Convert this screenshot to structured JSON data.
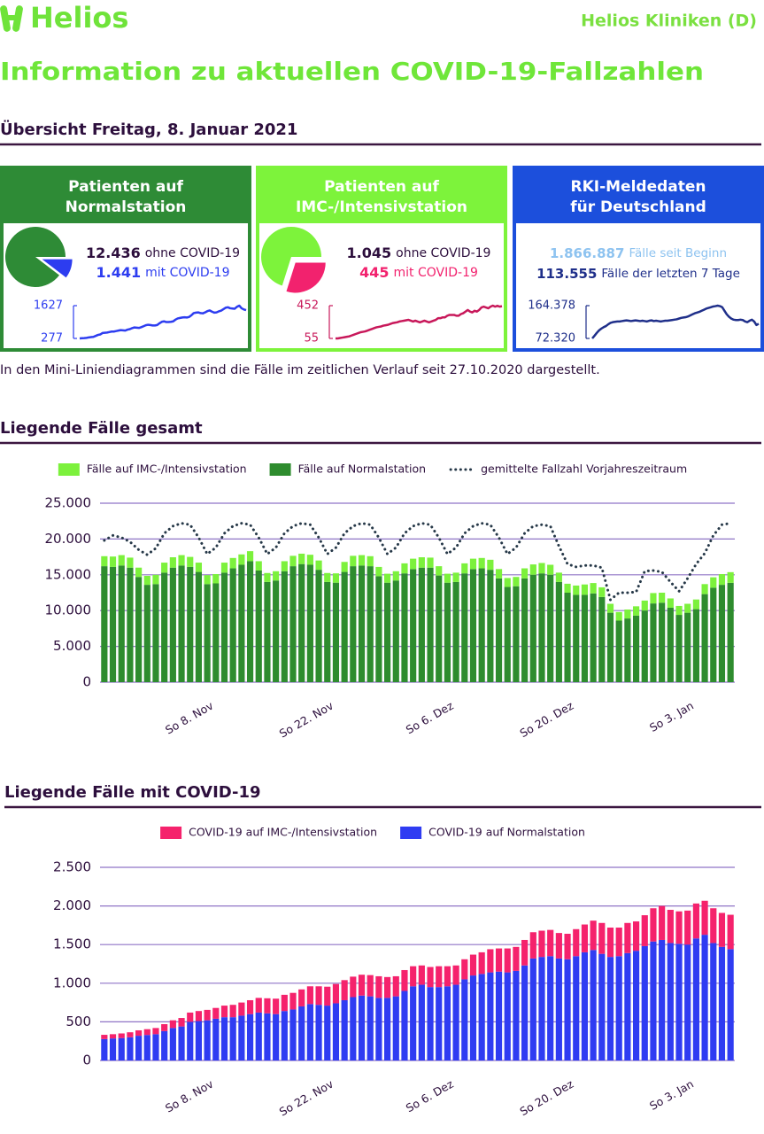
{
  "header": {
    "brand": "Helios",
    "region": "Helios Kliniken (D)",
    "title": "Information zu aktuellen COVID-19-Fallzahlen",
    "subtitle": "Übersicht Freitag, 8. Januar 2021"
  },
  "cards": [
    {
      "title_lines": [
        "Patienten auf",
        "Normalstation"
      ],
      "color": "#2e8b36",
      "pie": {
        "values": [
          12436,
          1441
        ],
        "value_labels": [
          "12.436",
          "1.441"
        ],
        "labels": [
          "ohne COVID-19",
          "mit COVID-19"
        ],
        "colors": [
          "#2e8b36",
          "#2d3df0"
        ]
      },
      "sparkline": {
        "ylim": [
          277,
          1627
        ],
        "yticks": [
          277,
          1627
        ],
        "color": "#2d3df0"
      }
    },
    {
      "title_lines": [
        "Patienten auf",
        "IMC-/Intensivstation"
      ],
      "color": "#7df33b",
      "pie": {
        "values": [
          1045,
          445
        ],
        "value_labels": [
          "1.045",
          "445"
        ],
        "labels": [
          "ohne COVID-19",
          "mit COVID-19"
        ],
        "colors": [
          "#7df33b",
          "#f2226e"
        ]
      },
      "sparkline": {
        "ylim": [
          55,
          452
        ],
        "yticks": [
          55,
          452
        ],
        "color": "#c8185a"
      }
    },
    {
      "title_lines": [
        "RKI-Meldedaten",
        "für Deutschland"
      ],
      "color": "#1c4fdc",
      "stats": [
        {
          "value": "1.866.887",
          "label": "Fälle seit Beginn",
          "color": "#8ec3f0"
        },
        {
          "value": "113.555",
          "label": "Fälle der letzten 7 Tage",
          "color": "#1f2f8a"
        }
      ],
      "sparkline": {
        "ylim": [
          72320,
          164378
        ],
        "yticks": [
          {
            "value": 72320,
            "label": "72.320"
          },
          {
            "value": 164378,
            "label": "164.378"
          }
        ],
        "color": "#1f2f8a",
        "values": [
          72320,
          80000,
          88000,
          95000,
          100000,
          104000,
          107000,
          112000,
          116000,
          118000,
          119000,
          120000,
          120000,
          121000,
          122000,
          123000,
          122000,
          121000,
          122000,
          123000,
          122000,
          121000,
          122000,
          121000,
          120000,
          122000,
          123000,
          121000,
          122000,
          121000,
          120000,
          121000,
          122000,
          122000,
          123000,
          124000,
          125000,
          126000,
          128000,
          130000,
          131000,
          132000,
          134000,
          137000,
          140000,
          143000,
          145000,
          147000,
          150000,
          153000,
          156000,
          158000,
          160000,
          162000,
          163000,
          164378,
          163000,
          160000,
          150000,
          140000,
          133000,
          128000,
          125000,
          124000,
          124000,
          125000,
          124000,
          120000,
          118000,
          122000,
          125000,
          120000,
          110000,
          113555
        ]
      }
    }
  ],
  "note": "In den Mini-Liniendiagrammen sind die Fälle im zeitlichen Verlauf seit 27.10.2020 dargestellt.",
  "chart_data": [
    {
      "type": "bar",
      "title": "Liegende Fälle gesamt",
      "stacked": true,
      "grid": true,
      "categories": [
        null,
        null,
        null,
        null,
        null,
        null,
        null,
        null,
        null,
        null,
        null,
        null,
        "So 8. Nov",
        null,
        null,
        null,
        null,
        null,
        null,
        null,
        null,
        null,
        null,
        null,
        null,
        null,
        "So 22. Nov",
        null,
        null,
        null,
        null,
        null,
        null,
        null,
        null,
        null,
        null,
        null,
        null,
        null,
        "So 6. Dez",
        null,
        null,
        null,
        null,
        null,
        null,
        null,
        null,
        null,
        null,
        null,
        null,
        null,
        "So 20. Dez",
        null,
        null,
        null,
        null,
        null,
        null,
        null,
        null,
        null,
        null,
        null,
        null,
        null,
        "So 3. Jan",
        null,
        null,
        null,
        null,
        null
      ],
      "ylim": [
        0,
        25000
      ],
      "yticks": [
        0,
        {
          "value": 5000,
          "label": "5.000"
        },
        {
          "value": 10000,
          "label": "10.000"
        },
        {
          "value": 15000,
          "label": "15.000"
        },
        {
          "value": 20000,
          "label": "20.000"
        },
        {
          "value": 25000,
          "label": "25.000"
        }
      ],
      "series": [
        {
          "name": "Fälle auf Normalstation",
          "color": "#2e8c2e",
          "values": [
            16200,
            16100,
            16300,
            16000,
            14700,
            13600,
            13700,
            15300,
            16000,
            16300,
            16100,
            15400,
            13700,
            13800,
            15300,
            15900,
            16400,
            16900,
            15600,
            14000,
            14200,
            15500,
            16200,
            16500,
            16400,
            15700,
            14000,
            13900,
            15400,
            16200,
            16300,
            16200,
            14800,
            13900,
            14200,
            15200,
            15800,
            16000,
            16000,
            14900,
            13900,
            14000,
            15200,
            15800,
            15900,
            15700,
            14500,
            13300,
            13400,
            14500,
            15000,
            15200,
            15000,
            14000,
            12500,
            12200,
            12200,
            12400,
            11900,
            9700,
            8600,
            8900,
            9300,
            10000,
            11000,
            11100,
            10400,
            9400,
            9700,
            10200,
            12300,
            13200,
            13600,
            13877
          ]
        },
        {
          "name": "Fälle auf IMC-/Intensivstation",
          "color": "#7cf13c",
          "values": [
            1400,
            1450,
            1450,
            1400,
            1300,
            1250,
            1300,
            1400,
            1450,
            1450,
            1400,
            1300,
            1250,
            1300,
            1400,
            1450,
            1450,
            1400,
            1300,
            1250,
            1300,
            1400,
            1450,
            1450,
            1400,
            1300,
            1250,
            1300,
            1400,
            1450,
            1450,
            1400,
            1300,
            1250,
            1300,
            1400,
            1450,
            1450,
            1400,
            1300,
            1250,
            1300,
            1400,
            1450,
            1450,
            1400,
            1300,
            1250,
            1300,
            1400,
            1450,
            1450,
            1400,
            1300,
            1250,
            1300,
            1450,
            1450,
            1350,
            1250,
            1200,
            1250,
            1300,
            1400,
            1450,
            1400,
            1300,
            1250,
            1250,
            1350,
            1400,
            1450,
            1500,
            1490
          ]
        },
        {
          "name": "gemittelte Fallzahl Vorjahreszeitraum",
          "type": "line",
          "style": "dotted",
          "color": "#263848",
          "values": [
            19800,
            20500,
            20200,
            19600,
            18500,
            17800,
            18700,
            20800,
            21800,
            22200,
            22000,
            20200,
            17900,
            18800,
            20800,
            21800,
            22200,
            22000,
            20200,
            17900,
            18800,
            20800,
            21800,
            22200,
            22000,
            20200,
            17900,
            18800,
            20800,
            21800,
            22200,
            22000,
            20200,
            17900,
            18800,
            20800,
            21800,
            22200,
            22000,
            20200,
            17900,
            18800,
            20800,
            21800,
            22200,
            22000,
            20200,
            17900,
            18800,
            20800,
            21800,
            22000,
            21800,
            19000,
            16500,
            16100,
            16300,
            16300,
            16000,
            11500,
            12500,
            12500,
            12600,
            15500,
            15600,
            15400,
            14000,
            12700,
            14500,
            16500,
            18000,
            20500,
            22000,
            22200
          ]
        }
      ]
    },
    {
      "type": "bar",
      "title": "Liegende Fälle mit COVID-19",
      "stacked": true,
      "grid": true,
      "categories": [
        null,
        null,
        null,
        null,
        null,
        null,
        null,
        null,
        null,
        null,
        null,
        null,
        "So 8. Nov",
        null,
        null,
        null,
        null,
        null,
        null,
        null,
        null,
        null,
        null,
        null,
        null,
        null,
        "So 22. Nov",
        null,
        null,
        null,
        null,
        null,
        null,
        null,
        null,
        null,
        null,
        null,
        null,
        null,
        "So 6. Dez",
        null,
        null,
        null,
        null,
        null,
        null,
        null,
        null,
        null,
        null,
        null,
        null,
        null,
        "So 20. Dez",
        null,
        null,
        null,
        null,
        null,
        null,
        null,
        null,
        null,
        null,
        null,
        null,
        null,
        "So 3. Jan",
        null,
        null,
        null,
        null,
        null
      ],
      "ylim": [
        0,
        2500
      ],
      "yticks": [
        0,
        500,
        {
          "value": 1000,
          "label": "1.000"
        },
        {
          "value": 1500,
          "label": "1.500"
        },
        {
          "value": 2000,
          "label": "2.000"
        },
        {
          "value": 2500,
          "label": "2.500"
        }
      ],
      "series": [
        {
          "name": "COVID-19 auf Normalstation",
          "color": "#2f3cf2",
          "values": [
            277,
            285,
            290,
            300,
            320,
            330,
            340,
            380,
            420,
            440,
            500,
            510,
            520,
            540,
            560,
            560,
            580,
            600,
            620,
            610,
            600,
            640,
            660,
            700,
            730,
            720,
            710,
            740,
            780,
            820,
            840,
            830,
            810,
            810,
            830,
            900,
            960,
            980,
            950,
            950,
            960,
            980,
            1050,
            1100,
            1120,
            1140,
            1150,
            1140,
            1160,
            1230,
            1320,
            1340,
            1350,
            1320,
            1310,
            1350,
            1400,
            1430,
            1380,
            1340,
            1350,
            1390,
            1420,
            1480,
            1540,
            1560,
            1520,
            1510,
            1500,
            1580,
            1627,
            1520,
            1470,
            1441
          ]
        },
        {
          "name": "COVID-19 auf IMC-/Intensivstation",
          "color": "#f5226c",
          "values": [
            55,
            55,
            60,
            65,
            70,
            75,
            80,
            90,
            100,
            110,
            120,
            130,
            135,
            140,
            150,
            160,
            170,
            180,
            190,
            195,
            200,
            210,
            215,
            220,
            230,
            240,
            245,
            250,
            260,
            265,
            270,
            275,
            280,
            270,
            260,
            270,
            260,
            250,
            260,
            270,
            260,
            250,
            260,
            270,
            280,
            300,
            300,
            310,
            310,
            330,
            340,
            340,
            340,
            330,
            330,
            350,
            360,
            380,
            400,
            380,
            370,
            390,
            380,
            400,
            430,
            440,
            430,
            420,
            440,
            452,
            440,
            450,
            440,
            445
          ]
        }
      ]
    }
  ]
}
